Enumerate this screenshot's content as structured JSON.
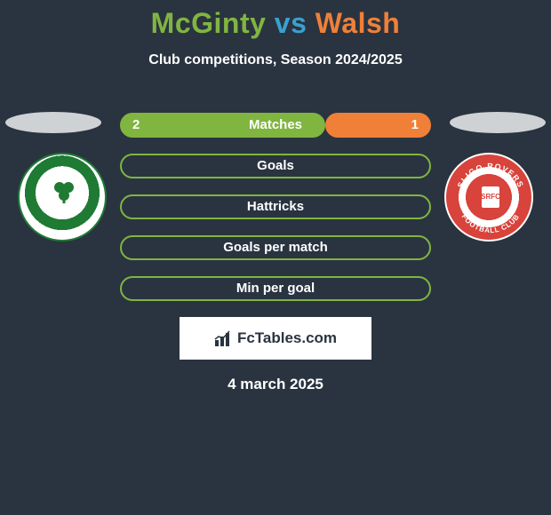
{
  "title": {
    "left_name": "McGinty",
    "sep": "vs",
    "right_name": "Walsh",
    "left_color": "#80b540",
    "sep_color": "#3aa0d0",
    "right_color": "#f08038"
  },
  "subtitle": "Club competitions, Season 2024/2025",
  "left_color": "#80b540",
  "right_color": "#f08038",
  "background_color": "#2a3440",
  "stats": [
    {
      "label": "Matches",
      "left_value": "2",
      "left_pct": 66,
      "right_value": "1",
      "right_pct": 34
    },
    {
      "label": "Goals",
      "left_value": "",
      "left_pct": 100,
      "right_value": "",
      "right_pct": 0
    },
    {
      "label": "Hattricks",
      "left_value": "",
      "left_pct": 100,
      "right_value": "",
      "right_pct": 0
    },
    {
      "label": "Goals per match",
      "left_value": "",
      "left_pct": 100,
      "right_value": "",
      "right_pct": 0
    },
    {
      "label": "Min per goal",
      "left_value": "",
      "left_pct": 100,
      "right_value": "",
      "right_pct": 0
    }
  ],
  "brand": "FcTables.com",
  "date": "4 march 2025",
  "badges": {
    "left": {
      "club": "Shamrock Rovers"
    },
    "right": {
      "club": "Sligo Rovers"
    }
  }
}
